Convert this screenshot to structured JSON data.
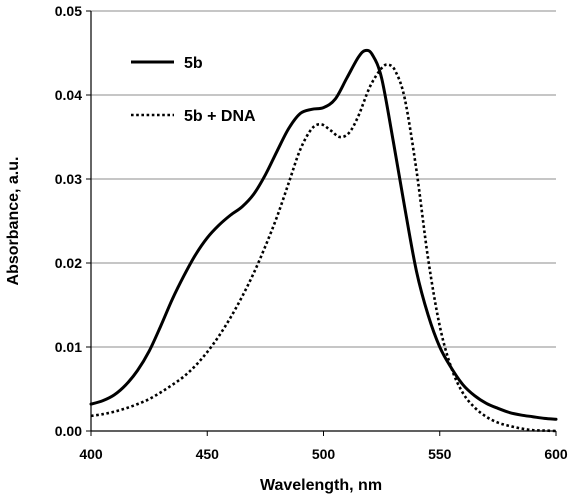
{
  "chart_data": {
    "type": "line",
    "title": "",
    "xlabel": "Wavelength, nm",
    "ylabel": "Absorbance, a.u.",
    "xlim": [
      400,
      600
    ],
    "ylim": [
      0,
      0.05
    ],
    "x_ticks": [
      "400",
      "450",
      "500",
      "550",
      "600"
    ],
    "y_ticks": [
      "0.00",
      "0.01",
      "0.02",
      "0.03",
      "0.04",
      "0.05"
    ],
    "grid": "horizontal",
    "legend_position": "top-left",
    "series": [
      {
        "name": "5b",
        "style": "solid",
        "color": "#000000",
        "points": [
          [
            400,
            0.0032
          ],
          [
            405,
            0.0036
          ],
          [
            410,
            0.0043
          ],
          [
            415,
            0.0055
          ],
          [
            420,
            0.0072
          ],
          [
            425,
            0.0095
          ],
          [
            430,
            0.0125
          ],
          [
            435,
            0.0157
          ],
          [
            440,
            0.0185
          ],
          [
            445,
            0.021
          ],
          [
            450,
            0.023
          ],
          [
            455,
            0.0245
          ],
          [
            460,
            0.0257
          ],
          [
            465,
            0.0267
          ],
          [
            470,
            0.0282
          ],
          [
            475,
            0.0305
          ],
          [
            480,
            0.0333
          ],
          [
            485,
            0.036
          ],
          [
            490,
            0.0378
          ],
          [
            495,
            0.0383
          ],
          [
            500,
            0.0385
          ],
          [
            505,
            0.0395
          ],
          [
            510,
            0.042
          ],
          [
            515,
            0.0445
          ],
          [
            518,
            0.0453
          ],
          [
            521,
            0.0448
          ],
          [
            525,
            0.042
          ],
          [
            530,
            0.0345
          ],
          [
            535,
            0.0265
          ],
          [
            540,
            0.019
          ],
          [
            545,
            0.0138
          ],
          [
            550,
            0.01
          ],
          [
            555,
            0.0075
          ],
          [
            560,
            0.0055
          ],
          [
            565,
            0.0042
          ],
          [
            570,
            0.0033
          ],
          [
            575,
            0.0027
          ],
          [
            580,
            0.0022
          ],
          [
            585,
            0.0019
          ],
          [
            590,
            0.0017
          ],
          [
            595,
            0.0015
          ],
          [
            600,
            0.0014
          ]
        ]
      },
      {
        "name": "5b + DNA",
        "style": "dotted",
        "color": "#000000",
        "points": [
          [
            400,
            0.0018
          ],
          [
            405,
            0.002
          ],
          [
            410,
            0.0023
          ],
          [
            415,
            0.0027
          ],
          [
            420,
            0.0032
          ],
          [
            425,
            0.0038
          ],
          [
            430,
            0.0046
          ],
          [
            435,
            0.0055
          ],
          [
            440,
            0.0065
          ],
          [
            445,
            0.0078
          ],
          [
            450,
            0.0094
          ],
          [
            455,
            0.0113
          ],
          [
            460,
            0.0135
          ],
          [
            465,
            0.016
          ],
          [
            470,
            0.0188
          ],
          [
            475,
            0.022
          ],
          [
            480,
            0.0255
          ],
          [
            485,
            0.0295
          ],
          [
            490,
            0.0335
          ],
          [
            495,
            0.036
          ],
          [
            499,
            0.0365
          ],
          [
            503,
            0.0358
          ],
          [
            507,
            0.035
          ],
          [
            511,
            0.0355
          ],
          [
            515,
            0.0375
          ],
          [
            520,
            0.041
          ],
          [
            525,
            0.0432
          ],
          [
            528,
            0.0436
          ],
          [
            531,
            0.0428
          ],
          [
            535,
            0.0395
          ],
          [
            540,
            0.031
          ],
          [
            545,
            0.0205
          ],
          [
            550,
            0.0125
          ],
          [
            555,
            0.0075
          ],
          [
            560,
            0.0045
          ],
          [
            565,
            0.0028
          ],
          [
            570,
            0.0017
          ],
          [
            575,
            0.001
          ],
          [
            580,
            0.0006
          ],
          [
            585,
            0.0003
          ],
          [
            590,
            0.0001
          ],
          [
            595,
            5e-05
          ],
          [
            600,
            0.0
          ]
        ]
      }
    ]
  }
}
